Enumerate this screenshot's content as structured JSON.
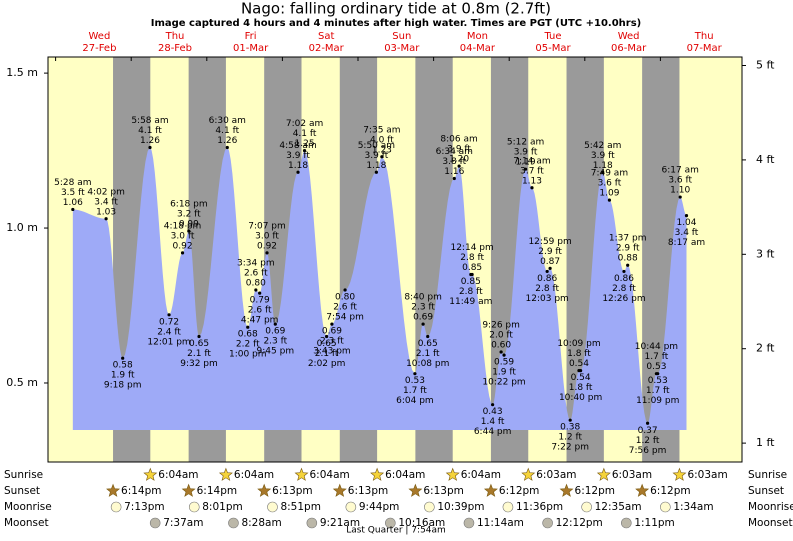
{
  "chart_data": {
    "type": "area",
    "title": "Nago: falling  ordinary tide at 0.8m (2.7ft)",
    "subtitle": "Image captured 4 hours and 4 minutes after high water. Times are PGT (UTC +10.0hrs)",
    "ylim": [
      0.245,
      1.552
    ],
    "yticks": [
      {
        "value": 0.5,
        "label": "0.5 m"
      },
      {
        "value": 1.0,
        "label": "1.0 m"
      },
      {
        "value": 1.5,
        "label": "1.5 m"
      }
    ],
    "y2lim": [
      0.8,
      5.09
    ],
    "y2ticks": [
      {
        "value": 1,
        "label": "1 ft"
      },
      {
        "value": 2,
        "label": "2 ft"
      },
      {
        "value": 3,
        "label": "3 ft"
      },
      {
        "value": 4,
        "label": "4 ft"
      },
      {
        "value": 5,
        "label": "5 ft"
      }
    ],
    "fill_color": "#9eaaf7",
    "day_color": "#ffffc4",
    "night_color": "#9a9a9a",
    "row_labels": [
      "Sunrise",
      "Sunset",
      "Moonrise",
      "Moonset"
    ],
    "moon_phase": "Last Quarter | 7:54am",
    "days": [
      {
        "weekday": "Wed",
        "date": "27-Feb",
        "sunrise": null,
        "sunset": "6:14pm",
        "moonrise": "7:13pm",
        "moonset": null,
        "tides": [
          {
            "time": "5:28 am",
            "height": 1.06,
            "ft": "3.5 ft"
          },
          {
            "time": "4:02 pm",
            "height": 1.03,
            "ft": "3.4 ft"
          },
          {
            "time": "9:18 pm",
            "height": 0.58,
            "ft": "1.9 ft"
          }
        ]
      },
      {
        "weekday": "Thu",
        "date": "28-Feb",
        "sunrise": "6:04am",
        "sunset": "6:14pm",
        "moonrise": "8:01pm",
        "moonset": "7:37am",
        "tides": [
          {
            "time": "5:58 am",
            "height": 1.26,
            "ft": "4.1 ft"
          },
          {
            "time": "12:01 pm",
            "height": 0.72,
            "ft": "2.4 ft"
          },
          {
            "time": "4:18 pm",
            "height": 0.92,
            "ft": "3.0 ft"
          },
          {
            "time": "6:18 pm",
            "height": 0.99,
            "ft": "3.2 ft"
          },
          {
            "time": "9:32 pm",
            "height": 0.65,
            "ft": "2.1 ft"
          }
        ]
      },
      {
        "weekday": "Fri",
        "date": "01-Mar",
        "sunrise": "6:04am",
        "sunset": "6:13pm",
        "moonrise": "8:51pm",
        "moonset": "8:28am",
        "tides": [
          {
            "time": "6:30 am",
            "height": 1.26,
            "ft": "4.1 ft"
          },
          {
            "time": "1:00 pm",
            "height": 0.68,
            "ft": "2.2 ft"
          },
          {
            "time": "3:34 pm",
            "height": 0.8,
            "height_label": "0.80",
            "ft": "2.6 ft"
          },
          {
            "time": "4:47 pm",
            "height": 0.79,
            "ft": "2.6 ft"
          },
          {
            "time": "7:07 pm",
            "height": 0.92,
            "ft": "3.0 ft"
          },
          {
            "time": "9:45 pm",
            "height": 0.69,
            "ft": "2.3 ft"
          }
        ]
      },
      {
        "weekday": "Sat",
        "date": "02-Mar",
        "sunrise": "6:04am",
        "sunset": "6:13pm",
        "moonrise": "9:44pm",
        "moonset": "9:21am",
        "tides": [
          {
            "time": "4:58 am",
            "height": 1.18,
            "ft": "3.9 ft"
          },
          {
            "time": "7:02 am",
            "height": 1.25,
            "ft": "4.1 ft"
          },
          {
            "time": "2:02 pm",
            "height": 0.65,
            "ft": "2.1 ft"
          },
          {
            "time": "3:43 pm",
            "height": 0.69,
            "ft": "2.3 ft"
          },
          {
            "time": "7:54 pm",
            "height": 0.8,
            "height_label": "0.80",
            "ft": "2.6 ft"
          }
        ]
      },
      {
        "weekday": "Sun",
        "date": "03-Mar",
        "sunrise": "6:04am",
        "sunset": "6:13pm",
        "moonrise": "10:39pm",
        "moonset": "10:16am",
        "tides": [
          {
            "time": "5:50 am",
            "height": 1.18,
            "ft": "3.9 ft"
          },
          {
            "time": "7:35 am",
            "height": 1.23,
            "ft": "4.0 ft"
          },
          {
            "time": "6:04 pm",
            "height": 0.53,
            "ft": "1.7 ft"
          },
          {
            "time": "8:40 pm",
            "height": 0.69,
            "ft": "2.3 ft"
          },
          {
            "time": "10:08 pm",
            "height": 0.65,
            "ft": "2.1 ft"
          }
        ]
      },
      {
        "weekday": "Mon",
        "date": "04-Mar",
        "sunrise": "6:04am",
        "sunset": "6:12pm",
        "moonrise": "11:36pm",
        "moonset": "11:14am",
        "tides": [
          {
            "time": "6:34 am",
            "height": 1.16,
            "ft": "3.8 ft"
          },
          {
            "time": "8:06 am",
            "height": 1.2,
            "height_label": "1.20",
            "ft": "3.9 ft"
          },
          {
            "time": "11:49 am",
            "height": 0.85,
            "ft": "2.8 ft"
          },
          {
            "time": "12:14 pm",
            "height": 0.85,
            "ft": "2.8 ft"
          },
          {
            "time": "6:44 pm",
            "height": 0.43,
            "ft": "1.4 ft"
          },
          {
            "time": "9:26 pm",
            "height": 0.6,
            "height_label": "0.60",
            "ft": "2.0 ft"
          },
          {
            "time": "10:22 pm",
            "height": 0.59,
            "ft": "1.9 ft"
          }
        ]
      },
      {
        "weekday": "Tue",
        "date": "05-Mar",
        "sunrise": "6:03am",
        "sunset": "6:12pm",
        "moonrise": null,
        "moonset": "12:12pm",
        "tides": [
          {
            "time": "5:12 am",
            "height": 1.19,
            "ft": "3.9 ft"
          },
          {
            "time": "7:14 am",
            "height": 1.13,
            "ft": "3.7 ft"
          },
          {
            "time": "12:03 pm",
            "height": 0.86,
            "ft": "2.8 ft"
          },
          {
            "time": "12:59 pm",
            "height": 0.87,
            "ft": "2.9 ft"
          },
          {
            "time": "7:22 pm",
            "height": 0.38,
            "ft": "1.2 ft"
          },
          {
            "time": "10:09 pm",
            "height": 0.54,
            "ft": "1.8 ft"
          },
          {
            "time": "10:40 pm",
            "height": 0.54,
            "ft": "1.8 ft"
          }
        ]
      },
      {
        "weekday": "Wed",
        "date": "06-Mar",
        "sunrise": "6:03am",
        "sunset": "6:12pm",
        "moonrise": "12:35am",
        "moonset": "1:11pm",
        "tides": [
          {
            "time": "5:42 am",
            "height": 1.18,
            "ft": "3.9 ft"
          },
          {
            "time": "7:49 am",
            "height": 1.09,
            "ft": "3.6 ft"
          },
          {
            "time": "12:26 pm",
            "height": 0.86,
            "ft": "2.8 ft"
          },
          {
            "time": "1:37 pm",
            "height": 0.88,
            "ft": "2.9 ft"
          },
          {
            "time": "7:56 pm",
            "height": 0.37,
            "ft": "1.2 ft"
          },
          {
            "time": "10:44 pm",
            "height": 0.53,
            "ft": "1.7 ft"
          },
          {
            "time": "11:09 pm",
            "height": 0.53,
            "ft": "1.7 ft"
          }
        ]
      },
      {
        "weekday": "Thu",
        "date": "07-Mar",
        "sunrise": "6:03am",
        "sunset": null,
        "moonrise": "1:34am",
        "moonset": null,
        "tides": [
          {
            "time": "6:17 am",
            "height": 1.1,
            "height_label": "1.10",
            "ft": "3.6 ft"
          },
          {
            "time": "8:17 am",
            "height": 1.04,
            "ft": "3.4 ft"
          }
        ]
      }
    ]
  }
}
